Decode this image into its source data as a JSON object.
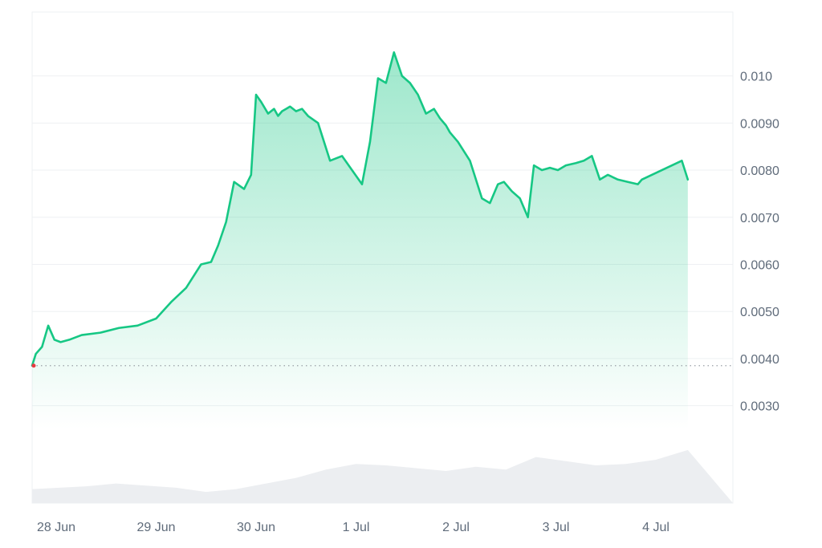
{
  "chart_data": {
    "type": "area",
    "title": "",
    "xlabel": "",
    "ylabel": "",
    "x_ticks": [
      "28 Jun",
      "29 Jun",
      "30 Jun",
      "1 Jul",
      "2 Jul",
      "3 Jul",
      "4 Jul"
    ],
    "y_ticks": [
      "0.010",
      "0.0090",
      "0.0080",
      "0.0070",
      "0.0060",
      "0.0050",
      "0.0040",
      "0.0030"
    ],
    "ylim": [
      0.0025,
      0.0111
    ],
    "grid": true,
    "colors": {
      "line": "#16c784",
      "fill_top": "#16c784",
      "volume": "#eceef1",
      "grid": "#eef0f3",
      "baseline": "#9aa0a6",
      "start_dot": "#ea3943",
      "axis_text": "#5f6b7a"
    },
    "reference_line": 0.00385,
    "series": [
      {
        "x": [
          "28 Jun",
          "28 Jun",
          "28 Jun",
          "28 Jun",
          "28 Jun",
          "28 Jun",
          "28 Jun",
          "28 Jun",
          "28 Jun",
          "28 Jun",
          "28 Jun",
          "29 Jun",
          "29 Jun",
          "29 Jun",
          "29 Jun",
          "29 Jun",
          "29 Jun",
          "29 Jun",
          "29 Jun",
          "29 Jun",
          "30 Jun",
          "30 Jun",
          "30 Jun",
          "30 Jun",
          "30 Jun",
          "30 Jun",
          "30 Jun",
          "30 Jun",
          "30 Jun",
          "30 Jun",
          "30 Jun",
          "30 Jun",
          "30 Jun",
          "30 Jun",
          "1 Jul",
          "1 Jul",
          "1 Jul",
          "1 Jul",
          "1 Jul",
          "1 Jul",
          "1 Jul",
          "1 Jul",
          "1 Jul",
          "1 Jul",
          "1 Jul",
          "2 Jul",
          "2 Jul",
          "2 Jul",
          "2 Jul",
          "2 Jul",
          "2 Jul",
          "2 Jul",
          "2 Jul",
          "2 Jul",
          "2 Jul",
          "2 Jul",
          "2 Jul",
          "2 Jul",
          "3 Jul",
          "3 Jul",
          "3 Jul",
          "3 Jul",
          "3 Jul",
          "3 Jul",
          "3 Jul",
          "3 Jul",
          "3 Jul",
          "3 Jul",
          "3 Jul",
          "3 Jul",
          "3 Jul",
          "4 Jul",
          "4 Jul",
          "4 Jul",
          "4 Jul",
          "4 Jul",
          "4 Jul",
          "4 Jul",
          "4 Jul",
          "4 Jul",
          "4 Jul"
        ],
        "t": [
          0.0,
          0.03,
          0.08,
          0.13,
          0.18,
          0.23,
          0.3,
          0.4,
          0.55,
          0.7,
          0.85,
          1.0,
          1.15,
          1.3,
          1.45,
          1.55,
          1.62,
          1.7,
          1.78,
          1.88,
          1.95,
          2.0,
          2.05,
          2.12,
          2.18,
          2.22,
          2.26,
          2.3,
          2.34,
          2.4,
          2.46,
          2.52,
          2.62,
          2.74,
          2.86,
          2.96,
          3.06,
          3.14,
          3.22,
          3.3,
          3.38,
          3.46,
          3.54,
          3.62,
          3.7,
          3.78,
          3.84,
          3.9,
          3.94,
          3.98,
          4.02,
          4.08,
          4.14,
          4.2,
          4.26,
          4.34,
          4.38,
          4.42,
          4.48,
          4.56,
          4.64,
          4.72,
          4.78,
          4.86,
          4.94,
          5.02,
          5.1,
          5.2,
          5.28,
          5.36,
          5.44,
          5.52,
          5.62,
          5.72,
          5.82,
          5.86,
          5.96,
          6.06,
          6.16,
          6.26,
          6.32
        ],
        "values": [
          0.00385,
          0.0041,
          0.00425,
          0.0047,
          0.0044,
          0.00435,
          0.0044,
          0.0045,
          0.00455,
          0.00465,
          0.0047,
          0.00485,
          0.0052,
          0.0055,
          0.006,
          0.00605,
          0.0064,
          0.0069,
          0.00775,
          0.0076,
          0.0079,
          0.0096,
          0.00945,
          0.0092,
          0.0093,
          0.00915,
          0.00925,
          0.0093,
          0.00935,
          0.00925,
          0.0093,
          0.00915,
          0.009,
          0.0082,
          0.0083,
          0.008,
          0.0077,
          0.0086,
          0.00995,
          0.00985,
          0.0105,
          0.01,
          0.00985,
          0.0096,
          0.0092,
          0.0093,
          0.0091,
          0.00895,
          0.0088,
          0.0087,
          0.0086,
          0.0084,
          0.0082,
          0.0078,
          0.0074,
          0.0073,
          0.0075,
          0.0077,
          0.00775,
          0.00755,
          0.0074,
          0.007,
          0.0081,
          0.008,
          0.00805,
          0.008,
          0.0081,
          0.00815,
          0.0082,
          0.0083,
          0.0078,
          0.0079,
          0.0078,
          0.00775,
          0.0077,
          0.0078,
          0.0079,
          0.008,
          0.0081,
          0.0082,
          0.0078
        ]
      }
    ],
    "volume": {
      "t": [
        0.0,
        0.3,
        0.6,
        0.9,
        1.2,
        1.5,
        1.8,
        2.1,
        2.4,
        2.7,
        3.0,
        3.3,
        3.6,
        3.9,
        4.2,
        4.5,
        4.8,
        5.1,
        5.4,
        5.7,
        6.0,
        6.32
      ],
      "values": [
        0.2,
        0.24,
        0.28,
        0.25,
        0.22,
        0.16,
        0.2,
        0.28,
        0.36,
        0.48,
        0.56,
        0.54,
        0.5,
        0.46,
        0.52,
        0.48,
        0.66,
        0.6,
        0.54,
        0.56,
        0.62,
        0.76
      ]
    }
  }
}
